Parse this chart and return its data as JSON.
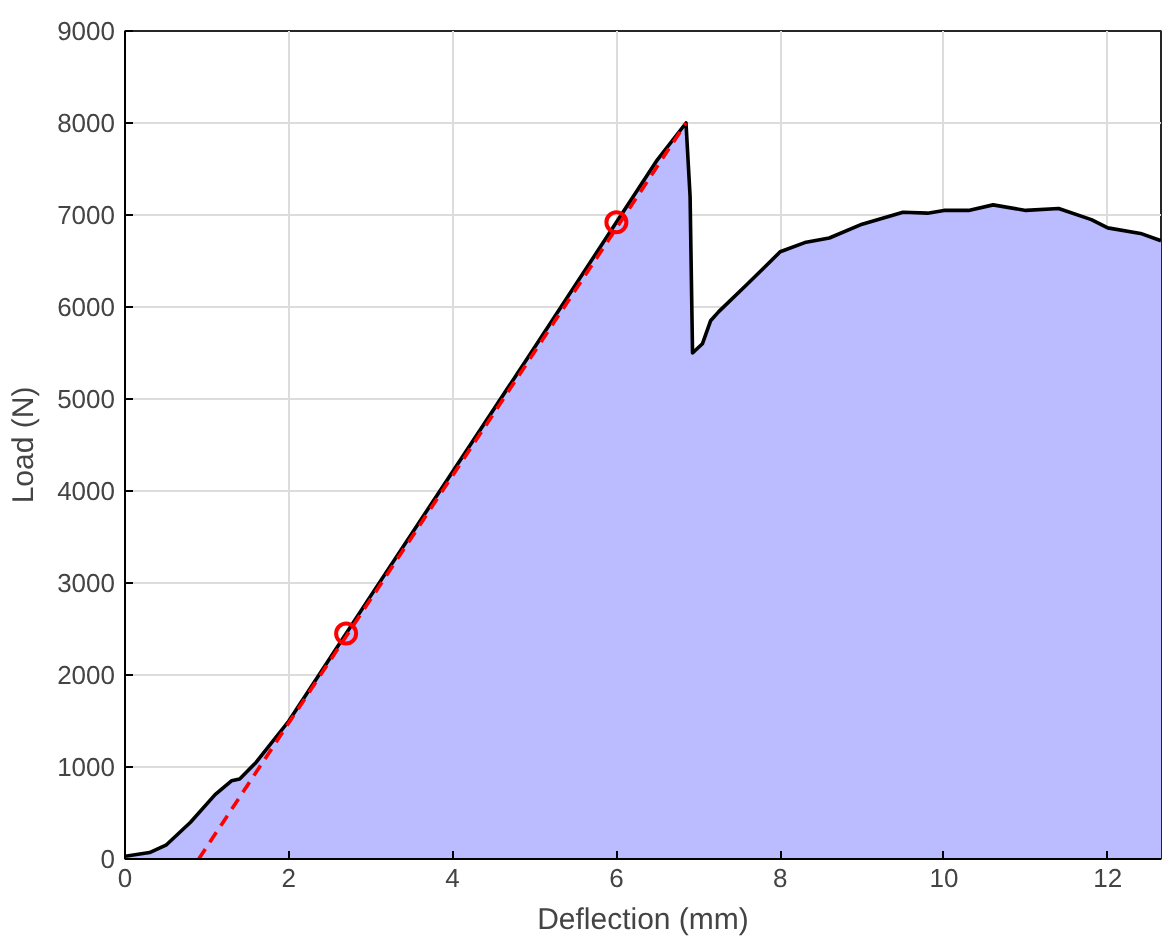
{
  "chart_data": {
    "type": "area",
    "xlabel": "Deflection (mm)",
    "ylabel": "Load (N)",
    "xlim": [
      0,
      12.65
    ],
    "ylim": [
      0,
      9000
    ],
    "xticks": [
      0,
      2,
      4,
      6,
      8,
      10,
      12
    ],
    "yticks": [
      0,
      1000,
      2000,
      3000,
      4000,
      5000,
      6000,
      7000,
      8000,
      9000
    ],
    "grid": true,
    "series": [
      {
        "color": "#bbbbff",
        "x": [
          0,
          0.3,
          0.5,
          0.8,
          1.1,
          1.3,
          1.4,
          1.6,
          2,
          2.7,
          3,
          4,
          5,
          6,
          6.5,
          6.85,
          6.9,
          6.93,
          7.05,
          7.15,
          7.25,
          7.6,
          8,
          8.3,
          8.6,
          9,
          9.5,
          9.8,
          10,
          10.3,
          10.6,
          11,
          11.4,
          11.8,
          12,
          12.4,
          12.65
        ],
        "values": [
          30,
          70,
          150,
          400,
          700,
          850,
          870,
          1050,
          1500,
          2450,
          2860,
          4210,
          5560,
          6920,
          7600,
          8000,
          7200,
          5500,
          5600,
          5850,
          5950,
          6250,
          6600,
          6700,
          6750,
          6900,
          7030,
          7020,
          7050,
          7050,
          7110,
          7050,
          7070,
          6950,
          6860,
          6800,
          6720
        ]
      },
      {
        "type": "line",
        "color": "#ff0000",
        "line_style": "dashed",
        "x": [
          0.9,
          6.85
        ],
        "values": [
          0,
          8000
        ]
      },
      {
        "type": "scatter",
        "color": "#ff0000",
        "marker": "circle",
        "x": [
          2.7,
          6.0
        ],
        "values": [
          2450,
          6920
        ]
      }
    ]
  }
}
